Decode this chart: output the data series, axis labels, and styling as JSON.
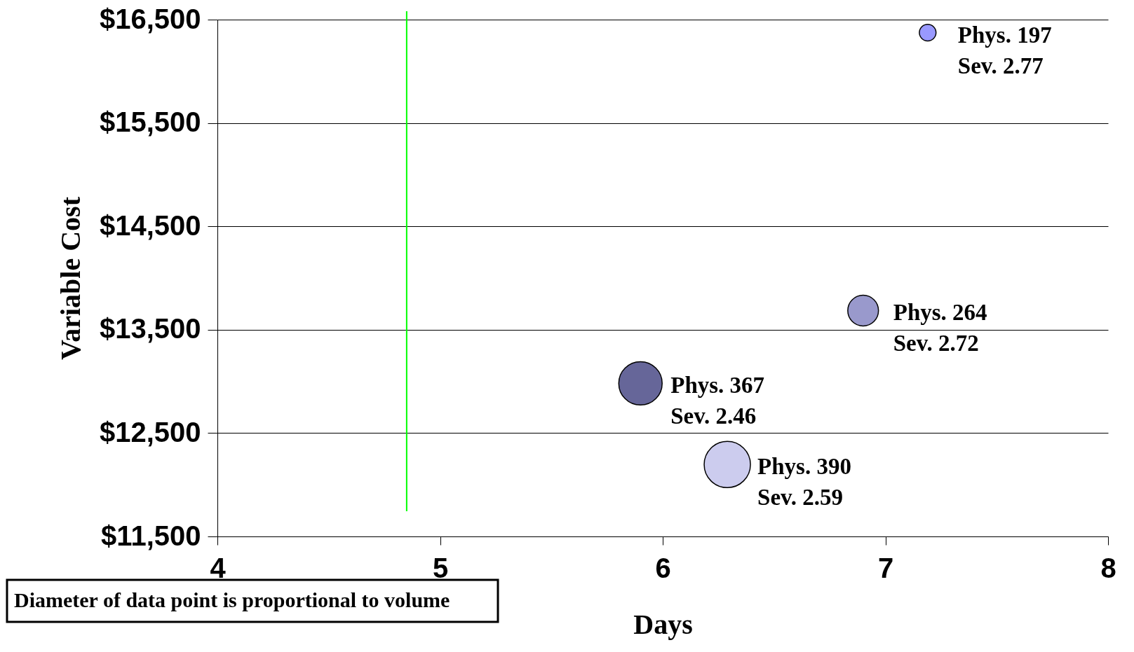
{
  "chart_data": {
    "type": "bubble",
    "xlabel": "Days",
    "ylabel": "Variable Cost",
    "x": [
      7.19,
      6.9,
      5.9,
      6.29
    ],
    "values": [
      16374,
      13685,
      12981,
      12196
    ],
    "sizes": [
      0.13,
      0.44,
      0.88,
      1
    ],
    "colors": [
      "#9999ff",
      "#9999cc",
      "#666699",
      "#ccccee"
    ],
    "xlim": [
      4,
      8
    ],
    "xticks": [
      4,
      5,
      6,
      7,
      8
    ],
    "ylim": [
      11500,
      16500
    ],
    "yticks": [
      {
        "value": 11500,
        "label": "$11,500"
      },
      {
        "value": 12500,
        "label": "$12,500"
      },
      {
        "value": 13500,
        "label": "$13,500"
      },
      {
        "value": 14500,
        "label": "$14,500"
      },
      {
        "value": 15500,
        "label": "$15,500"
      },
      {
        "value": 16500,
        "label": "$16,500"
      }
    ],
    "grid": "y",
    "legend": false,
    "ref_lines": [
      {
        "axis": "x",
        "value": 4.85,
        "color": "#00ff00"
      }
    ],
    "annotations": [
      {
        "text": "Phys. 197\nSev. 2.77",
        "x": 7.19,
        "y": 16374
      },
      {
        "text": "Phys. 264\nSev. 2.72",
        "x": 6.9,
        "y": 13685
      },
      {
        "text": "Phys. 367\nSev. 2.46",
        "x": 5.9,
        "y": 12981
      },
      {
        "text": "Phys. 390\nSev. 2.59",
        "x": 6.29,
        "y": 12196
      },
      "Diameter of data point is proportional to volume"
    ]
  }
}
